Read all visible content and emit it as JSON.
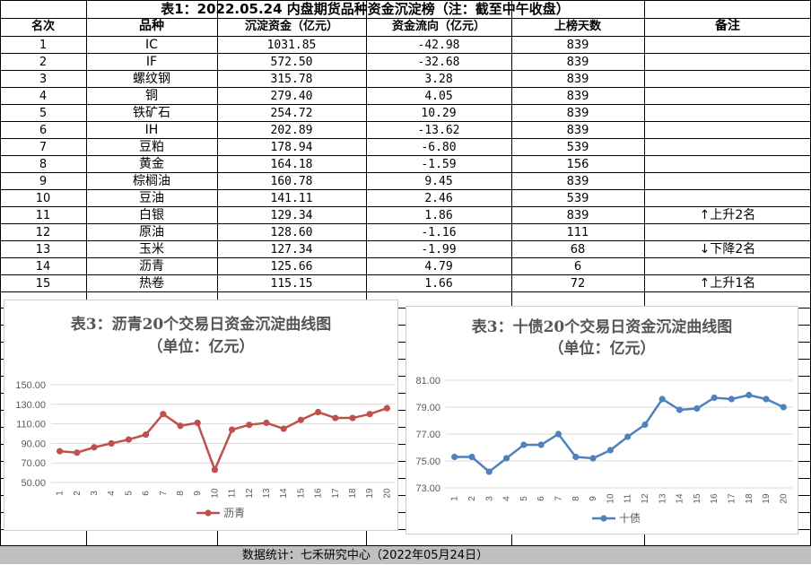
{
  "table": {
    "title": "表1：2022.05.24 内盘期货品种资金沉淀榜（注：截至中午收盘）",
    "headers": [
      "名次",
      "品种",
      "沉淀资金（亿元）",
      "资金流向（亿元）",
      "上榜天数",
      "备注"
    ],
    "rows": [
      {
        "rank": "1",
        "name": "IC",
        "amount": "1031.85",
        "flow": "-42.98",
        "days": "839",
        "note": ""
      },
      {
        "rank": "2",
        "name": "IF",
        "amount": "572.50",
        "flow": "-32.68",
        "days": "839",
        "note": ""
      },
      {
        "rank": "3",
        "name": "螺纹钢",
        "amount": "315.78",
        "flow": "3.28",
        "days": "839",
        "note": ""
      },
      {
        "rank": "4",
        "name": "铜",
        "amount": "279.40",
        "flow": "4.05",
        "days": "839",
        "note": ""
      },
      {
        "rank": "5",
        "name": "铁矿石",
        "amount": "254.72",
        "flow": "10.29",
        "days": "839",
        "note": ""
      },
      {
        "rank": "6",
        "name": "IH",
        "amount": "202.89",
        "flow": "-13.62",
        "days": "839",
        "note": ""
      },
      {
        "rank": "7",
        "name": "豆粕",
        "amount": "178.94",
        "flow": "-6.80",
        "days": "539",
        "note": ""
      },
      {
        "rank": "8",
        "name": "黄金",
        "amount": "164.18",
        "flow": "-1.59",
        "days": "156",
        "note": ""
      },
      {
        "rank": "9",
        "name": "棕榈油",
        "amount": "160.78",
        "flow": "9.45",
        "days": "839",
        "note": ""
      },
      {
        "rank": "10",
        "name": "豆油",
        "amount": "141.11",
        "flow": "2.46",
        "days": "539",
        "note": ""
      },
      {
        "rank": "11",
        "name": "白银",
        "amount": "129.34",
        "flow": "1.86",
        "days": "839",
        "note": "↑上升2名"
      },
      {
        "rank": "12",
        "name": "原油",
        "amount": "128.60",
        "flow": "-1.16",
        "days": "111",
        "note": ""
      },
      {
        "rank": "13",
        "name": "玉米",
        "amount": "127.34",
        "flow": "-1.99",
        "days": "68",
        "note": "↓下降2名"
      },
      {
        "rank": "14",
        "name": "沥青",
        "amount": "125.66",
        "flow": "4.79",
        "days": "6",
        "note": ""
      },
      {
        "rank": "15",
        "name": "热卷",
        "amount": "115.15",
        "flow": "1.66",
        "days": "72",
        "note": "↑上升1名"
      }
    ]
  },
  "footer": "数据统计：七禾研究中心（2022年05月24日）",
  "chart_data": [
    {
      "type": "line",
      "title": "表3：沥青20个交易日资金沉淀曲线图",
      "subtitle": "（单位：亿元）",
      "x": [
        "1",
        "2",
        "3",
        "4",
        "5",
        "6",
        "7",
        "8",
        "9",
        "10",
        "11",
        "12",
        "13",
        "14",
        "15",
        "16",
        "17",
        "18",
        "19",
        "20"
      ],
      "series": [
        {
          "name": "沥青",
          "color": "#c0504d",
          "values": [
            82,
            80.5,
            86,
            90,
            94,
            99,
            120,
            108,
            111,
            63,
            104,
            109,
            111,
            105,
            114,
            122,
            116,
            116,
            120,
            126
          ]
        }
      ],
      "yticks": [
        "50.00",
        "70.00",
        "90.00",
        "110.00",
        "130.00",
        "150.00"
      ],
      "ylim": [
        50,
        150
      ],
      "grid": true,
      "legend": "bottom"
    },
    {
      "type": "line",
      "title": "表3：十债20个交易日资金沉淀曲线图",
      "subtitle": "（单位：亿元）",
      "x": [
        "1",
        "2",
        "3",
        "4",
        "5",
        "6",
        "7",
        "8",
        "9",
        "10",
        "11",
        "12",
        "13",
        "14",
        "15",
        "16",
        "17",
        "18",
        "19",
        "20"
      ],
      "series": [
        {
          "name": "十债",
          "color": "#4f81bd",
          "values": [
            75.3,
            75.3,
            74.2,
            75.2,
            76.2,
            76.2,
            77.0,
            75.3,
            75.2,
            75.8,
            76.8,
            77.7,
            79.6,
            78.8,
            78.9,
            79.7,
            79.6,
            79.9,
            79.6,
            79.0
          ]
        }
      ],
      "yticks": [
        "73.00",
        "75.00",
        "77.00",
        "79.00",
        "81.00"
      ],
      "ylim": [
        73,
        81
      ],
      "grid": true,
      "legend": "bottom"
    }
  ]
}
